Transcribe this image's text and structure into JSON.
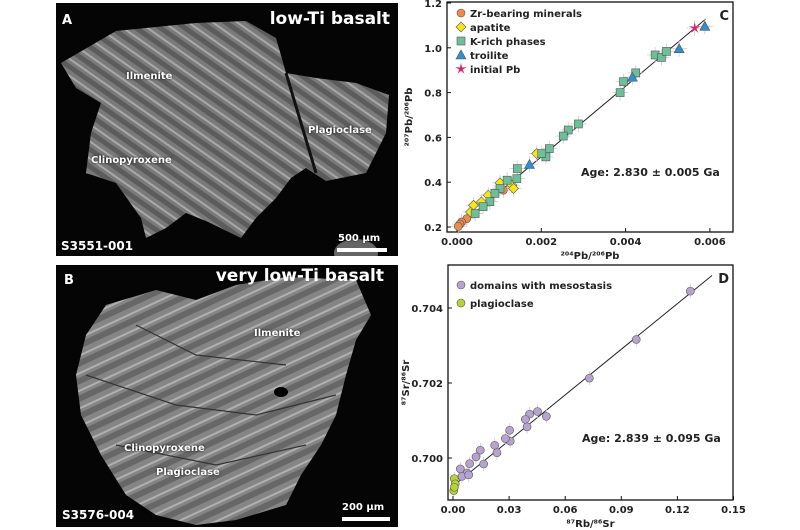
{
  "panel_a": {
    "letter": "A",
    "title": "low-Ti basalt",
    "sample": "S3551-001",
    "scale": "500 µm",
    "labels": {
      "ilmenite": "Ilmenite",
      "clinopyroxene": "Clinopyroxene",
      "plagioclase": "Plagioclase"
    }
  },
  "panel_b": {
    "letter": "B",
    "title": "very low-Ti basalt",
    "sample": "S3576-004",
    "scale": "200 µm",
    "labels": {
      "ilmenite": "Ilmenite",
      "clinopyroxene": "Clinopyroxene",
      "plagioclase": "Plagioclase"
    }
  },
  "chart_data": [
    {
      "panel": "C",
      "type": "scatter",
      "xlabel": "²⁰⁴Pb/²⁰⁶Pb",
      "ylabel": "²⁰⁷Pb/²⁰⁶Pb",
      "xlim": [
        -0.0002,
        0.0065
      ],
      "ylim": [
        0.18,
        1.2
      ],
      "xticks": [
        "0.000",
        "0.002",
        "0.004",
        "0.006"
      ],
      "yticks": [
        "0.2",
        "0.4",
        "0.6",
        "0.8",
        "1.0",
        "1.2"
      ],
      "legend_position": "top-left",
      "annotation": "Age: 2.830 ± 0.005 Ga",
      "isochron": {
        "slope": 157.7,
        "intercept": 0.198,
        "x_range": [
          0,
          0.0059
        ]
      },
      "series": [
        {
          "name": "Zr-bearing minerals",
          "marker": "circle",
          "color": "#f08a4b",
          "points": [
            [
              0.0011,
              0.364
            ],
            [
              0.00023,
              0.237
            ],
            [
              0.00011,
              0.222
            ],
            [
              7e-05,
              0.213
            ],
            [
              3e-05,
              0.203
            ]
          ]
        },
        {
          "name": "apatite",
          "marker": "diamond",
          "color": "#f5e61a",
          "points": [
            [
              0.00189,
              0.528
            ],
            [
              0.00102,
              0.397
            ],
            [
              0.0013,
              0.387
            ],
            [
              0.00134,
              0.372
            ],
            [
              0.00074,
              0.342
            ],
            [
              0.00058,
              0.312
            ],
            [
              0.00039,
              0.297
            ],
            [
              0.00032,
              0.267
            ]
          ]
        },
        {
          "name": "K-rich phases",
          "marker": "square",
          "color": "#6dbf9a",
          "points": [
            [
              0.0047,
              0.968
            ],
            [
              0.00485,
              0.957
            ],
            [
              0.00497,
              0.984
            ],
            [
              0.00424,
              0.888
            ],
            [
              0.00395,
              0.849
            ],
            [
              0.00387,
              0.8
            ],
            [
              0.00288,
              0.66
            ],
            [
              0.00264,
              0.633
            ],
            [
              0.00252,
              0.606
            ],
            [
              0.00219,
              0.55
            ],
            [
              0.00211,
              0.513
            ],
            [
              0.00201,
              0.528
            ],
            [
              0.00143,
              0.461
            ],
            [
              0.00142,
              0.416
            ],
            [
              0.00119,
              0.409
            ],
            [
              0.00102,
              0.372
            ],
            [
              0.0009,
              0.35
            ],
            [
              0.00078,
              0.313
            ],
            [
              0.00062,
              0.291
            ],
            [
              0.00043,
              0.26
            ]
          ]
        },
        {
          "name": "troilite",
          "marker": "triangle",
          "color": "#2f8fd0",
          "points": [
            [
              0.00588,
              1.096
            ],
            [
              0.00527,
              0.996
            ],
            [
              0.00416,
              0.869
            ],
            [
              0.00172,
              0.479
            ]
          ]
        },
        {
          "name": "initial Pb",
          "marker": "star",
          "color": "#d6246e",
          "points": [
            [
              0.00564,
              1.088
            ]
          ]
        }
      ]
    },
    {
      "panel": "D",
      "type": "scatter",
      "xlabel": "⁸⁷Rb/⁸⁶Sr",
      "ylabel": "⁸⁷Sr/⁸⁶Sr",
      "xlim": [
        -0.003,
        0.15
      ],
      "ylim": [
        0.69888,
        0.70515
      ],
      "xticks": [
        "0.00",
        "0.03",
        "0.06",
        "0.09",
        "0.12",
        "0.15"
      ],
      "yticks": [
        "0.700",
        "0.702",
        "0.704"
      ],
      "legend_position": "top-left",
      "annotation": "Age: 2.839 ± 0.095 Ga",
      "isochron": {
        "slope": 0.04055,
        "intercept": 0.69925,
        "x_range": [
          0,
          0.1385
        ]
      },
      "series": [
        {
          "name": "domains with mesostasis",
          "marker": "circle",
          "color": "#b7a3cf",
          "points": [
            [
              0.1269,
              0.70445
            ],
            [
              0.098,
              0.70316
            ],
            [
              0.0729,
              0.70213
            ],
            [
              0.041,
              0.70117
            ],
            [
              0.0452,
              0.70124
            ],
            [
              0.0499,
              0.70111
            ],
            [
              0.0387,
              0.70103
            ],
            [
              0.0396,
              0.70083
            ],
            [
              0.0303,
              0.70074
            ],
            [
              0.0306,
              0.70045
            ],
            [
              0.028,
              0.70052
            ],
            [
              0.0223,
              0.70034
            ],
            [
              0.0235,
              0.70014
            ],
            [
              0.0146,
              0.70021
            ],
            [
              0.0123,
              0.70003
            ],
            [
              0.0164,
              0.69984
            ],
            [
              0.0089,
              0.69985
            ],
            [
              0.0039,
              0.69971
            ],
            [
              0.0075,
              0.6996
            ],
            [
              0.0048,
              0.69951
            ],
            [
              0.0084,
              0.69955
            ]
          ]
        },
        {
          "name": "plagioclase",
          "marker": "circle",
          "color": "#b5d334",
          "points": [
            [
              0.0007,
              0.69945
            ],
            [
              0.0012,
              0.69931
            ],
            [
              0.0004,
              0.69913
            ],
            [
              0.0007,
              0.69922
            ]
          ]
        }
      ]
    }
  ]
}
